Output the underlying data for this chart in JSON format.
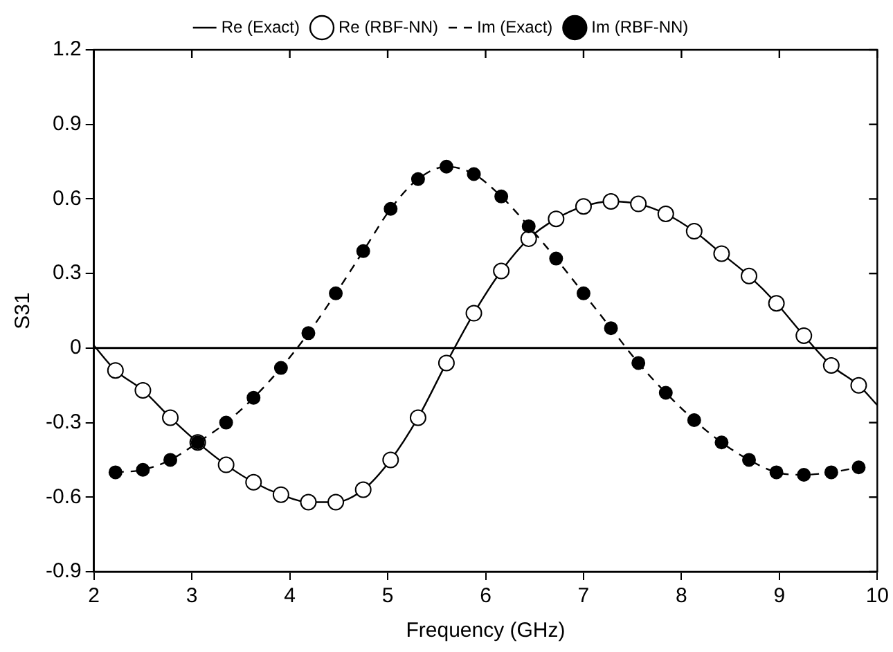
{
  "chart_data": {
    "type": "line",
    "xlabel": "Frequency (GHz)",
    "ylabel": "S31",
    "xlim": [
      2,
      10
    ],
    "ylim": [
      -0.9,
      1.2
    ],
    "xticks": [
      2,
      3,
      4,
      5,
      6,
      7,
      8,
      9,
      10
    ],
    "yticks": [
      -0.9,
      -0.6,
      -0.3,
      0,
      0.3,
      0.6,
      0.9,
      1.2
    ],
    "grid": false,
    "legend": "top",
    "ref_lines": [
      {
        "axis": "y",
        "value": 0,
        "color": "#000000",
        "line_style": "solid"
      }
    ],
    "series": [
      {
        "name": "Re (Exact)",
        "color": "#000000",
        "marker": "none",
        "line_style": "solid",
        "x": [
          2,
          2.22,
          2.5,
          2.78,
          3.06,
          3.35,
          3.63,
          3.91,
          4.19,
          4.47,
          4.75,
          5.03,
          5.31,
          5.6,
          5.88,
          6.16,
          6.44,
          6.72,
          7.0,
          7.28,
          7.56,
          7.84,
          8.13,
          8.41,
          8.69,
          8.97,
          9.25,
          9.53,
          9.81,
          10
        ],
        "values": [
          0.01,
          -0.09,
          -0.17,
          -0.28,
          -0.38,
          -0.47,
          -0.54,
          -0.59,
          -0.62,
          -0.62,
          -0.57,
          -0.45,
          -0.28,
          -0.06,
          0.14,
          0.31,
          0.44,
          0.52,
          0.57,
          0.59,
          0.58,
          0.54,
          0.47,
          0.38,
          0.29,
          0.18,
          0.05,
          -0.07,
          -0.15,
          -0.23
        ]
      },
      {
        "name": "Re (RBF-NN)",
        "type": "scatter",
        "color": "#ffffff",
        "marker": "circle",
        "x": [
          2.22,
          2.5,
          2.78,
          3.06,
          3.35,
          3.63,
          3.91,
          4.19,
          4.47,
          4.75,
          5.03,
          5.31,
          5.6,
          5.88,
          6.16,
          6.44,
          6.72,
          7.0,
          7.28,
          7.56,
          7.84,
          8.13,
          8.41,
          8.69,
          8.97,
          9.25,
          9.53,
          9.81
        ],
        "values": [
          -0.09,
          -0.17,
          -0.28,
          -0.38,
          -0.47,
          -0.54,
          -0.59,
          -0.62,
          -0.62,
          -0.57,
          -0.45,
          -0.28,
          -0.06,
          0.14,
          0.31,
          0.44,
          0.52,
          0.57,
          0.59,
          0.58,
          0.54,
          0.47,
          0.38,
          0.29,
          0.18,
          0.05,
          -0.07,
          -0.15
        ]
      },
      {
        "name": "Im (Exact)",
        "color": "#000000",
        "marker": "none",
        "line_style": "dashed",
        "x": [
          2.22,
          2.5,
          2.78,
          3.06,
          3.35,
          3.63,
          3.91,
          4.19,
          4.47,
          4.75,
          5.03,
          5.31,
          5.6,
          5.88,
          6.16,
          6.44,
          6.72,
          7.0,
          7.28,
          7.56,
          7.84,
          8.13,
          8.41,
          8.69,
          8.97,
          9.25,
          9.53,
          9.81
        ],
        "values": [
          -0.5,
          -0.49,
          -0.45,
          -0.38,
          -0.3,
          -0.2,
          -0.08,
          0.06,
          0.22,
          0.39,
          0.56,
          0.68,
          0.73,
          0.7,
          0.61,
          0.49,
          0.36,
          0.22,
          0.08,
          -0.06,
          -0.18,
          -0.29,
          -0.38,
          -0.45,
          -0.5,
          -0.51,
          -0.5,
          -0.48
        ]
      },
      {
        "name": "Im (RBF-NN)",
        "type": "scatter",
        "color": "#000000",
        "marker": "circle",
        "x": [
          2.22,
          2.5,
          2.78,
          3.06,
          3.35,
          3.63,
          3.91,
          4.19,
          4.47,
          4.75,
          5.03,
          5.31,
          5.6,
          5.88,
          6.16,
          6.44,
          6.72,
          7.0,
          7.28,
          7.56,
          7.84,
          8.13,
          8.41,
          8.69,
          8.97,
          9.25,
          9.53,
          9.81
        ],
        "values": [
          -0.5,
          -0.49,
          -0.45,
          -0.38,
          -0.3,
          -0.2,
          -0.08,
          0.06,
          0.22,
          0.39,
          0.56,
          0.68,
          0.73,
          0.7,
          0.61,
          0.49,
          0.36,
          0.22,
          0.08,
          -0.06,
          -0.18,
          -0.29,
          -0.38,
          -0.45,
          -0.5,
          -0.51,
          -0.5,
          -0.48
        ]
      }
    ]
  }
}
